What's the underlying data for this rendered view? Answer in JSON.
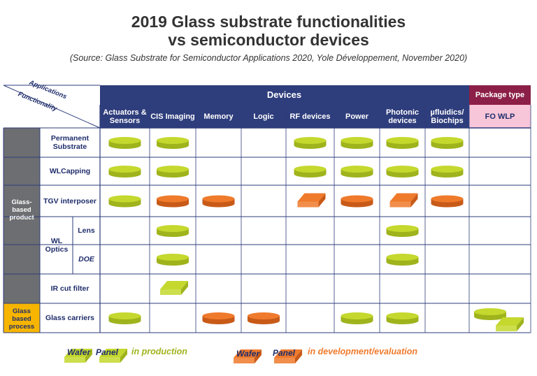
{
  "title": {
    "line1": "2019 Glass substrate functionalities",
    "line2": "vs semiconductor devices"
  },
  "source": "(Source: Glass Substrate for Semiconductor Applications 2020, Yole Développement, November 2020)",
  "corner": {
    "applications": "Applications",
    "functionality": "Functionality"
  },
  "header": {
    "devices": "Devices",
    "package_type": "Package type",
    "fo_wlp": "FO WLP"
  },
  "columns": [
    "Actuators & Sensors",
    "CIS Imaging",
    "Memory",
    "Logic",
    "RF devices",
    "Power",
    "Photonic devices",
    "µfluidics/ Biochips"
  ],
  "groups": {
    "glass_based_product": "Glass-based product",
    "glass_based_process": "Glass based process",
    "wl_optics": "WL Optics"
  },
  "rows": [
    {
      "label": "Permanent Substrate",
      "cells": [
        "wafer-green",
        "wafer-green",
        "",
        "",
        "wafer-green",
        "wafer-green",
        "wafer-green",
        "wafer-green",
        ""
      ]
    },
    {
      "label": "WLCapping",
      "cells": [
        "wafer-green",
        "wafer-green",
        "",
        "",
        "wafer-green",
        "wafer-green",
        "wafer-green",
        "wafer-green",
        ""
      ]
    },
    {
      "label": "TGV interposer",
      "cells": [
        "wafer-green",
        "wafer-orange",
        "wafer-orange",
        "",
        "panel-orange",
        "wafer-orange",
        "panel-orange",
        "wafer-orange",
        ""
      ]
    },
    {
      "label": "Lens",
      "cells": [
        "",
        "wafer-green",
        "",
        "",
        "",
        "",
        "wafer-green",
        "",
        ""
      ]
    },
    {
      "label": "DOE",
      "cells": [
        "",
        "wafer-green",
        "",
        "",
        "",
        "",
        "wafer-green",
        "",
        ""
      ]
    },
    {
      "label": "IR cut filter",
      "cells": [
        "",
        "panel-green",
        "",
        "",
        "",
        "",
        "",
        "",
        ""
      ]
    },
    {
      "label": "Glass carriers",
      "cells": [
        "wafer-green",
        "",
        "wafer-orange",
        "wafer-orange",
        "",
        "wafer-green",
        "wafer-green",
        "",
        "wafer-green+panel-green"
      ]
    }
  ],
  "legend": {
    "wafer": "Wafer",
    "panel": "Panel",
    "in_production": "in production",
    "in_development": "in development/evaluation"
  },
  "colors": {
    "navy": "#2e3d7c",
    "maroon": "#8c1f47",
    "pink": "#f8c6d9",
    "grey": "#6d6e71",
    "yellow": "#f7b500",
    "green": "#c4d82e",
    "green_dark": "#9fb31c",
    "orange": "#ef7a2c",
    "orange_dark": "#c85a18",
    "line": "#2e3d7c"
  }
}
